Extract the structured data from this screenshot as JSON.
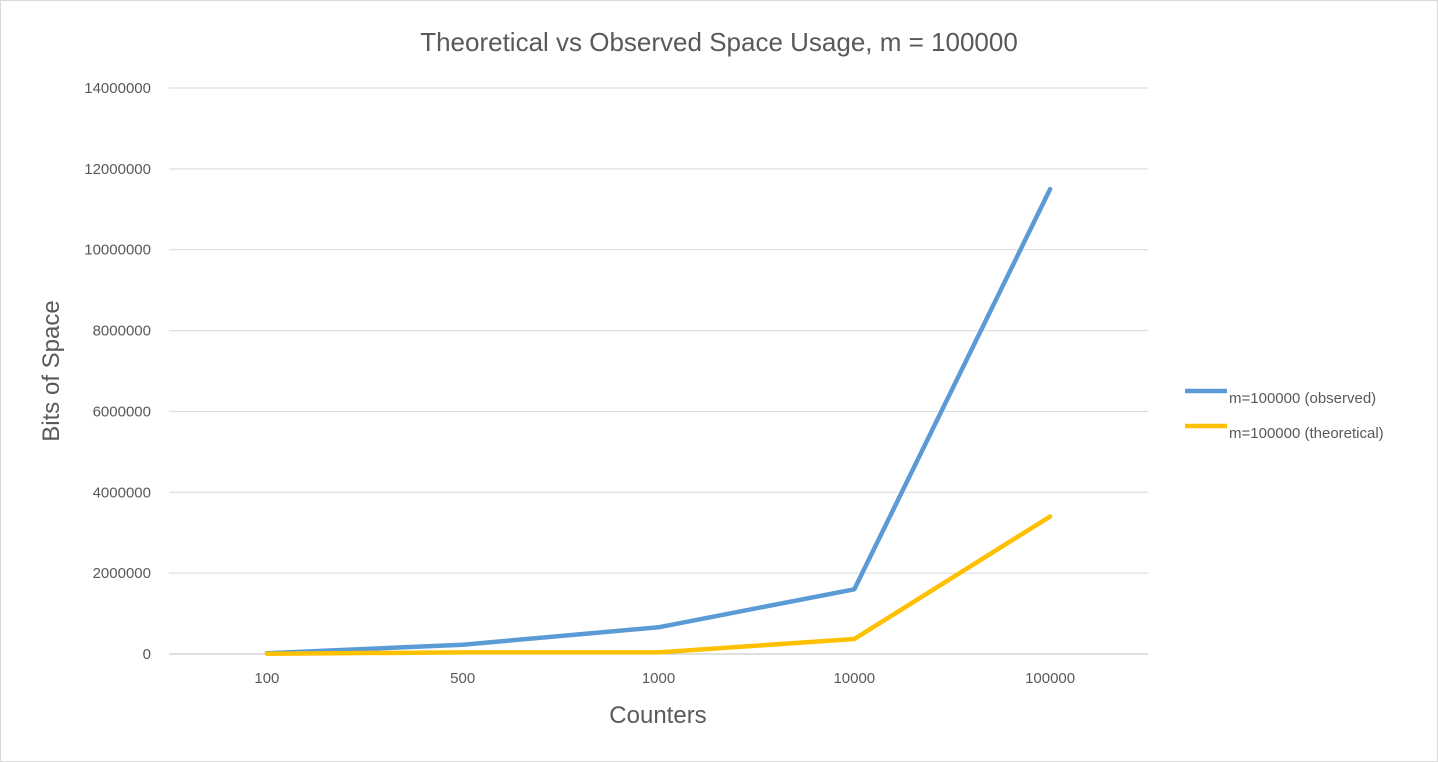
{
  "chart_data": {
    "type": "line",
    "title": "Theoretical vs Observed Space Usage, m = 100000",
    "xlabel": "Counters",
    "ylabel": "Bits of Space",
    "categories": [
      "100",
      "500",
      "1000",
      "10000",
      "100000"
    ],
    "y_ticks": [
      "0",
      "2000000",
      "4000000",
      "6000000",
      "8000000",
      "10000000",
      "12000000",
      "14000000"
    ],
    "ylim": [
      0,
      14000000
    ],
    "grid": true,
    "legend_position": "right",
    "series": [
      {
        "name": "m=100000 (observed)",
        "color": "#5b9bd5",
        "values": [
          20000,
          230000,
          660000,
          1600000,
          11500000
        ]
      },
      {
        "name": "m=100000 (theoretical)",
        "color": "#ffc000",
        "values": [
          8000,
          40000,
          40000,
          370000,
          3400000
        ]
      }
    ]
  }
}
